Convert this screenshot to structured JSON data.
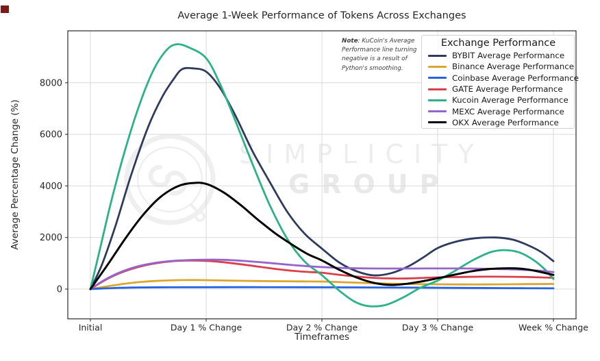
{
  "note": {
    "prefix": "Note",
    "body": ": KuCoin's Average Performance line turning negative is a result of Python's smoothing."
  },
  "watermark": {
    "line1": "SIMPLICITY",
    "line2": "GROUP"
  },
  "chart_data": {
    "type": "line",
    "title": "Average 1-Week Performance of Tokens Across Exchanges",
    "xlabel": "Timeframes",
    "ylabel": "Average Percentage Change (%)",
    "legend_title": "Exchange Performance",
    "legend_position": "upper right",
    "grid": true,
    "x_categories": [
      "Initial",
      "Day 1 % Change",
      "Day 2 % Change",
      "Day 3 % Change",
      "Week % Change"
    ],
    "y_ticks": [
      0,
      2000,
      4000,
      6000,
      8000
    ],
    "ylim": [
      -1150,
      10000
    ],
    "series": [
      {
        "key": "bybit",
        "name": "BYBIT Average Performance",
        "color": "#2f3a5f",
        "width": 2.8,
        "values_at_ticks": [
          0,
          8430,
          1570,
          1590,
          1080
        ],
        "peak": 8560,
        "smooth_samples": [
          [
            0,
            0
          ],
          [
            0.1,
            950
          ],
          [
            0.22,
            2500
          ],
          [
            0.35,
            4400
          ],
          [
            0.5,
            6300
          ],
          [
            0.62,
            7450
          ],
          [
            0.72,
            8150
          ],
          [
            0.79,
            8520
          ],
          [
            0.88,
            8560
          ],
          [
            1.0,
            8430
          ],
          [
            1.12,
            7800
          ],
          [
            1.25,
            6750
          ],
          [
            1.4,
            5350
          ],
          [
            1.55,
            4150
          ],
          [
            1.7,
            3000
          ],
          [
            1.85,
            2150
          ],
          [
            2.0,
            1570
          ],
          [
            2.15,
            1030
          ],
          [
            2.3,
            690
          ],
          [
            2.45,
            530
          ],
          [
            2.6,
            620
          ],
          [
            2.75,
            890
          ],
          [
            2.88,
            1240
          ],
          [
            3.0,
            1590
          ],
          [
            3.15,
            1830
          ],
          [
            3.32,
            1970
          ],
          [
            3.5,
            2000
          ],
          [
            3.65,
            1915
          ],
          [
            3.78,
            1700
          ],
          [
            3.9,
            1420
          ],
          [
            4.0,
            1080
          ]
        ]
      },
      {
        "key": "binance",
        "name": "Binance Average Performance",
        "color": "#dba62e",
        "width": 2.8,
        "values_at_ticks": [
          0,
          345,
          292,
          186,
          198
        ],
        "peak": 350,
        "smooth_samples": [
          [
            0,
            0
          ],
          [
            0.15,
            110
          ],
          [
            0.3,
            210
          ],
          [
            0.45,
            282
          ],
          [
            0.6,
            325
          ],
          [
            0.75,
            345
          ],
          [
            0.9,
            350
          ],
          [
            1.0,
            345
          ],
          [
            1.2,
            330
          ],
          [
            1.4,
            315
          ],
          [
            1.6,
            305
          ],
          [
            1.8,
            298
          ],
          [
            2.0,
            292
          ],
          [
            2.2,
            264
          ],
          [
            2.4,
            234
          ],
          [
            2.6,
            209
          ],
          [
            2.8,
            195
          ],
          [
            3.0,
            186
          ],
          [
            3.2,
            180
          ],
          [
            3.4,
            181
          ],
          [
            3.6,
            186
          ],
          [
            3.8,
            193
          ],
          [
            4.0,
            198
          ]
        ]
      },
      {
        "key": "coinbase",
        "name": "Coinbase Average Performance",
        "color": "#2563e0",
        "width": 2.8,
        "values_at_ticks": [
          0,
          73,
          70,
          52,
          28
        ],
        "peak": 74,
        "smooth_samples": [
          [
            0,
            0
          ],
          [
            0.2,
            40
          ],
          [
            0.4,
            60
          ],
          [
            0.7,
            70
          ],
          [
            1.0,
            73
          ],
          [
            1.4,
            74
          ],
          [
            1.8,
            72
          ],
          [
            2.0,
            70
          ],
          [
            2.4,
            63
          ],
          [
            2.8,
            55
          ],
          [
            3.2,
            46
          ],
          [
            3.6,
            38
          ],
          [
            4.0,
            28
          ]
        ]
      },
      {
        "key": "gate",
        "name": "GATE Average Performance",
        "color": "#d93f4c",
        "width": 2.8,
        "values_at_ticks": [
          0,
          1092,
          635,
          455,
          438
        ],
        "peak": 1105,
        "smooth_samples": [
          [
            0,
            0
          ],
          [
            0.12,
            330
          ],
          [
            0.25,
            610
          ],
          [
            0.4,
            840
          ],
          [
            0.55,
            990
          ],
          [
            0.7,
            1075
          ],
          [
            0.85,
            1105
          ],
          [
            1.0,
            1092
          ],
          [
            1.15,
            1040
          ],
          [
            1.3,
            962
          ],
          [
            1.45,
            872
          ],
          [
            1.6,
            782
          ],
          [
            1.75,
            706
          ],
          [
            1.9,
            660
          ],
          [
            2.0,
            635
          ],
          [
            2.2,
            528
          ],
          [
            2.4,
            450
          ],
          [
            2.55,
            415
          ],
          [
            2.7,
            410
          ],
          [
            2.85,
            430
          ],
          [
            3.0,
            455
          ],
          [
            3.2,
            470
          ],
          [
            3.4,
            480
          ],
          [
            3.6,
            479
          ],
          [
            3.8,
            465
          ],
          [
            4.0,
            438
          ]
        ]
      },
      {
        "key": "kucoin",
        "name": "Kucoin Average Performance",
        "color": "#2cb287",
        "width": 2.8,
        "values_at_ticks": [
          0,
          8950,
          540,
          330,
          390
        ],
        "peak": 9490,
        "min": -660,
        "smooth_samples": [
          [
            0,
            0
          ],
          [
            0.08,
            1500
          ],
          [
            0.18,
            3400
          ],
          [
            0.3,
            5400
          ],
          [
            0.42,
            7100
          ],
          [
            0.54,
            8450
          ],
          [
            0.65,
            9230
          ],
          [
            0.74,
            9490
          ],
          [
            0.85,
            9370
          ],
          [
            1.0,
            8950
          ],
          [
            1.12,
            7950
          ],
          [
            1.25,
            6550
          ],
          [
            1.4,
            4850
          ],
          [
            1.55,
            3250
          ],
          [
            1.7,
            1950
          ],
          [
            1.85,
            1070
          ],
          [
            2.0,
            540
          ],
          [
            2.15,
            -60
          ],
          [
            2.28,
            -480
          ],
          [
            2.4,
            -660
          ],
          [
            2.55,
            -615
          ],
          [
            2.7,
            -330
          ],
          [
            2.85,
            50
          ],
          [
            3.0,
            330
          ],
          [
            3.15,
            710
          ],
          [
            3.3,
            1110
          ],
          [
            3.45,
            1420
          ],
          [
            3.57,
            1510
          ],
          [
            3.7,
            1430
          ],
          [
            3.82,
            1150
          ],
          [
            3.92,
            790
          ],
          [
            4.0,
            390
          ]
        ]
      },
      {
        "key": "mexc",
        "name": "MEXC Average Performance",
        "color": "#9565cd",
        "width": 2.8,
        "values_at_ticks": [
          0,
          1140,
          852,
          800,
          658
        ],
        "peak": 1140,
        "smooth_samples": [
          [
            0,
            0
          ],
          [
            0.12,
            350
          ],
          [
            0.25,
            640
          ],
          [
            0.4,
            870
          ],
          [
            0.55,
            1010
          ],
          [
            0.7,
            1090
          ],
          [
            0.85,
            1125
          ],
          [
            1.0,
            1140
          ],
          [
            1.15,
            1135
          ],
          [
            1.3,
            1100
          ],
          [
            1.45,
            1050
          ],
          [
            1.6,
            990
          ],
          [
            1.75,
            930
          ],
          [
            1.9,
            880
          ],
          [
            2.0,
            852
          ],
          [
            2.2,
            815
          ],
          [
            2.4,
            800
          ],
          [
            2.6,
            797
          ],
          [
            2.8,
            798
          ],
          [
            3.0,
            800
          ],
          [
            3.2,
            800
          ],
          [
            3.4,
            790
          ],
          [
            3.6,
            770
          ],
          [
            3.75,
            745
          ],
          [
            3.88,
            710
          ],
          [
            4.0,
            658
          ]
        ]
      },
      {
        "key": "okx",
        "name": "OKX Average Performance",
        "color": "#000000",
        "width": 3,
        "values_at_ticks": [
          0,
          4080,
          1110,
          420,
          550
        ],
        "peak": 4110,
        "smooth_samples": [
          [
            0,
            0
          ],
          [
            0.15,
            950
          ],
          [
            0.3,
            1950
          ],
          [
            0.45,
            2850
          ],
          [
            0.6,
            3550
          ],
          [
            0.75,
            3980
          ],
          [
            0.88,
            4110
          ],
          [
            1.0,
            4080
          ],
          [
            1.15,
            3750
          ],
          [
            1.3,
            3250
          ],
          [
            1.45,
            2680
          ],
          [
            1.6,
            2150
          ],
          [
            1.75,
            1700
          ],
          [
            1.88,
            1350
          ],
          [
            2.0,
            1110
          ],
          [
            2.15,
            750
          ],
          [
            2.3,
            450
          ],
          [
            2.45,
            240
          ],
          [
            2.6,
            160
          ],
          [
            2.75,
            215
          ],
          [
            2.9,
            330
          ],
          [
            3.0,
            420
          ],
          [
            3.15,
            560
          ],
          [
            3.3,
            695
          ],
          [
            3.45,
            780
          ],
          [
            3.58,
            805
          ],
          [
            3.72,
            790
          ],
          [
            3.85,
            700
          ],
          [
            4.0,
            550
          ]
        ]
      }
    ]
  }
}
